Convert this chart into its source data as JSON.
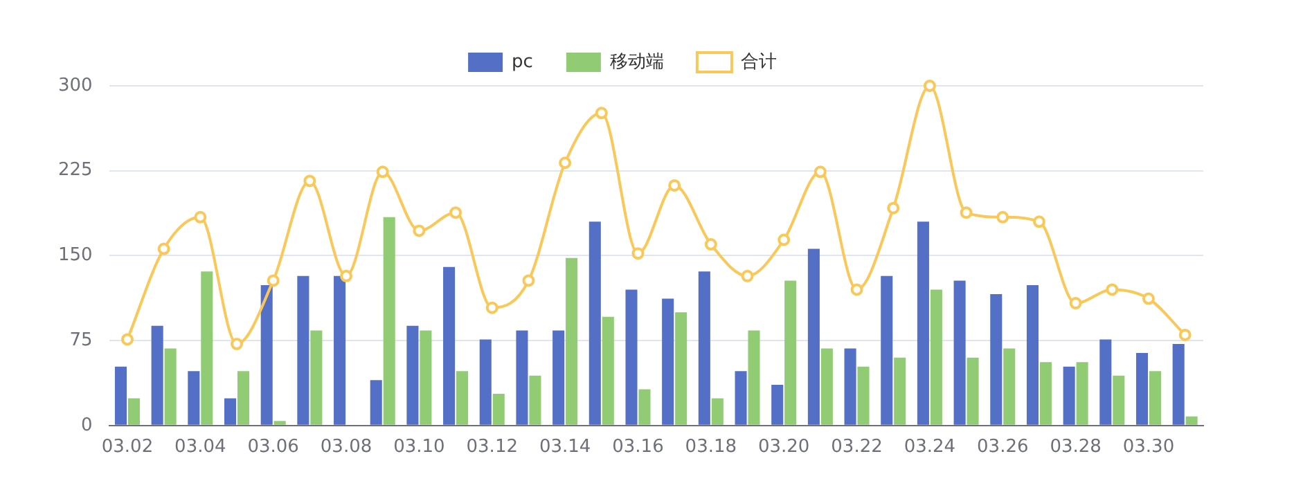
{
  "chart_data": {
    "type": "bar",
    "categories": [
      "03.02",
      null,
      "03.04",
      null,
      "03.06",
      null,
      "03.08",
      null,
      "03.10",
      null,
      "03.12",
      null,
      "03.14",
      null,
      "03.16",
      null,
      "03.18",
      null,
      "03.20",
      null,
      "03.22",
      null,
      "03.24",
      null,
      "03.26",
      null,
      "03.28",
      null,
      "03.30",
      null
    ],
    "series": [
      {
        "name": "pc",
        "color": "#5470c6",
        "values": [
          52,
          88,
          48,
          24,
          124,
          132,
          132,
          40,
          88,
          140,
          76,
          84,
          84,
          180,
          120,
          112,
          136,
          48,
          36,
          156,
          68,
          132,
          180,
          128,
          116,
          124,
          52,
          76,
          64,
          72
        ]
      },
      {
        "name": "移动端",
        "color": "#91cc75",
        "values": [
          24,
          68,
          136,
          48,
          4,
          84,
          0,
          184,
          84,
          48,
          28,
          44,
          148,
          96,
          32,
          100,
          24,
          84,
          128,
          68,
          52,
          60,
          120,
          60,
          68,
          56,
          56,
          44,
          48,
          8
        ]
      },
      {
        "name": "合计",
        "type": "line",
        "color": "#fac858",
        "marker": "circle",
        "values": [
          76,
          156,
          184,
          72,
          128,
          216,
          132,
          224,
          172,
          188,
          104,
          128,
          232,
          276,
          152,
          212,
          160,
          132,
          164,
          224,
          120,
          192,
          300,
          188,
          184,
          180,
          108,
          120,
          112,
          80
        ]
      }
    ],
    "ylim": [
      0,
      300
    ],
    "yticks": [
      0,
      75,
      150,
      225,
      300
    ],
    "grid": "y",
    "legend": "top"
  }
}
